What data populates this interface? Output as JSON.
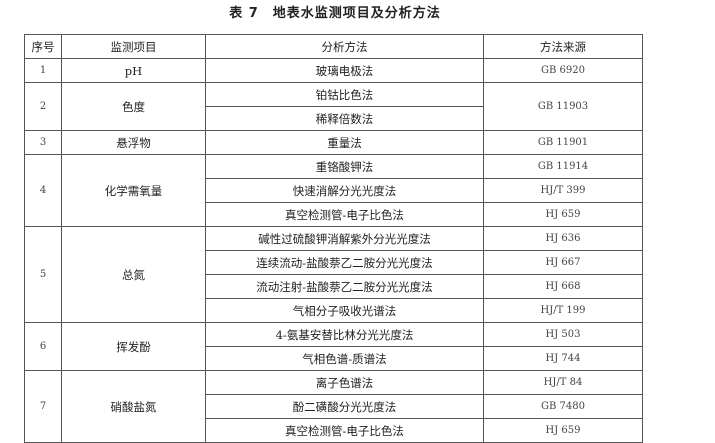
{
  "title": "表 7　地表水监测项目及分析方法",
  "headers": [
    "序号",
    "监测项目",
    "分析方法",
    "方法来源"
  ],
  "rows": [
    {
      "no": "1",
      "item": "pH",
      "methods": [
        {
          "method": "玻璃电极法",
          "source": "GB 6920"
        }
      ]
    },
    {
      "no": "2",
      "item": "色度",
      "methods": [
        {
          "method": "铂钴比色法"
        },
        {
          "method": "稀释倍数法"
        }
      ],
      "source": "GB 11903"
    },
    {
      "no": "3",
      "item": "悬浮物",
      "methods": [
        {
          "method": "重量法",
          "source": "GB 11901"
        }
      ]
    },
    {
      "no": "4",
      "item": "化学需氧量",
      "methods": [
        {
          "method": "重铬酸钾法",
          "source": "GB 11914"
        },
        {
          "method": "快速消解分光光度法",
          "source": "HJ/T 399"
        },
        {
          "method": "真空检测管-电子比色法",
          "source": "HJ 659"
        }
      ]
    },
    {
      "no": "5",
      "item": "总氮",
      "methods": [
        {
          "method": "碱性过硫酸钾消解紫外分光光度法",
          "source": "HJ 636"
        },
        {
          "method": "连续流动-盐酸萘乙二胺分光光度法",
          "source": "HJ 667"
        },
        {
          "method": "流动注射-盐酸萘乙二胺分光光度法",
          "source": "HJ 668"
        },
        {
          "method": "气相分子吸收光谱法",
          "source": "HJ/T 199"
        }
      ]
    },
    {
      "no": "6",
      "item": "挥发酚",
      "methods": [
        {
          "method": "4-氨基安替比林分光光度法",
          "source": "HJ 503"
        },
        {
          "method": "气相色谱-质谱法",
          "source": "HJ 744"
        }
      ]
    },
    {
      "no": "7",
      "item": "硝酸盐氮",
      "methods": [
        {
          "method": "离子色谱法",
          "source": "HJ/T 84"
        },
        {
          "method": "酚二磺酸分光光度法",
          "source": "GB 7480"
        },
        {
          "method": "真空检测管-电子比色法",
          "source": "HJ 659"
        }
      ]
    }
  ]
}
